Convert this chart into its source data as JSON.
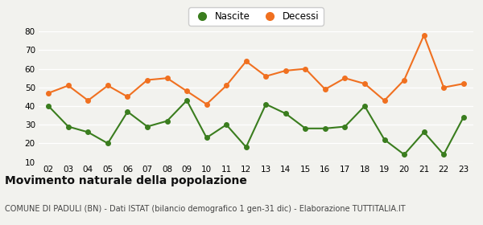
{
  "years": [
    "02",
    "03",
    "04",
    "05",
    "06",
    "07",
    "08",
    "09",
    "10",
    "11",
    "12",
    "13",
    "14",
    "15",
    "16",
    "17",
    "18",
    "19",
    "20",
    "21",
    "22",
    "23"
  ],
  "nascite": [
    40,
    29,
    26,
    20,
    37,
    29,
    32,
    43,
    23,
    30,
    18,
    41,
    36,
    28,
    28,
    29,
    40,
    22,
    14,
    26,
    14,
    34
  ],
  "decessi": [
    47,
    51,
    43,
    51,
    45,
    54,
    55,
    48,
    41,
    51,
    64,
    56,
    59,
    60,
    49,
    55,
    52,
    43,
    54,
    78,
    50,
    52
  ],
  "nascite_color": "#3a7d1e",
  "decessi_color": "#f07020",
  "background_color": "#f2f2ee",
  "ylim": [
    10,
    80
  ],
  "yticks": [
    10,
    20,
    30,
    40,
    50,
    60,
    70,
    80
  ],
  "title": "Movimento naturale della popolazione",
  "subtitle": "COMUNE DI PADULI (BN) - Dati ISTAT (bilancio demografico 1 gen-31 dic) - Elaborazione TUTTITALIA.IT",
  "legend_nascite": "Nascite",
  "legend_decessi": "Decessi",
  "title_fontsize": 10,
  "subtitle_fontsize": 7,
  "marker_size": 4,
  "line_width": 1.5
}
